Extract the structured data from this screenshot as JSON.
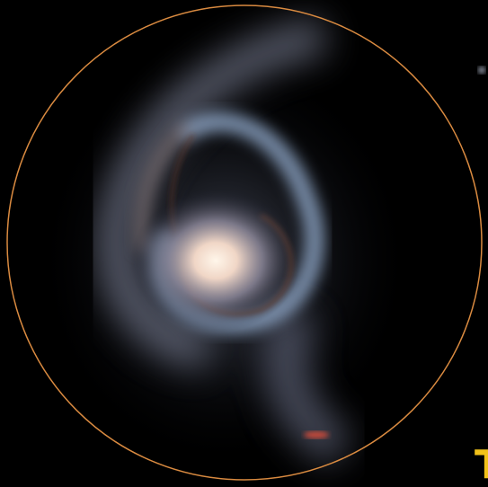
{
  "corner_text": "T"
}
